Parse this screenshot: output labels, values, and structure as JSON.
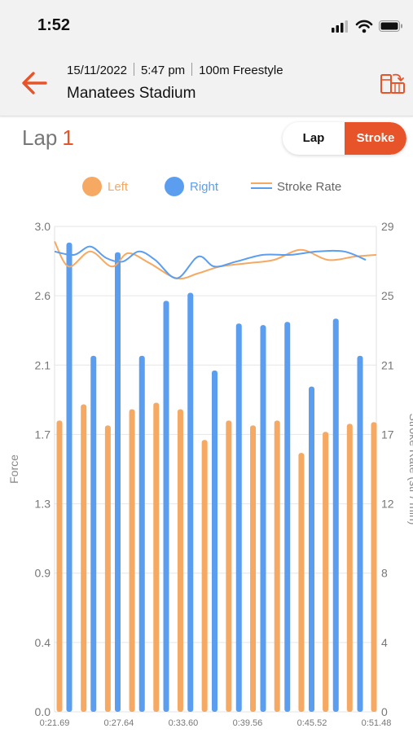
{
  "status_bar": {
    "time": "1:52"
  },
  "header": {
    "date": "15/11/2022",
    "time": "5:47 pm",
    "event": "100m Freestyle",
    "venue": "Manatees Stadium"
  },
  "lap": {
    "label": "Lap",
    "number": "1"
  },
  "toggle": {
    "lap_label": "Lap",
    "stroke_label": "Stroke",
    "selected": "Stroke"
  },
  "colors": {
    "accent": "#e8542a",
    "left": "#f5a962",
    "right": "#5b9ef0"
  },
  "chart_data": {
    "type": "bar",
    "legend": [
      "Left",
      "Right",
      "Stroke Rate"
    ],
    "legend_position": "top",
    "ylabel": "Force",
    "y2label": "Stroke Rate (str / min)",
    "yticks": [
      "0.0",
      "0.4",
      "0.9",
      "1.3",
      "1.7",
      "2.1",
      "2.6",
      "3.0"
    ],
    "y2ticks": [
      "0",
      "4",
      "8",
      "12",
      "17",
      "21",
      "25",
      "29"
    ],
    "xticks": [
      "0:21.69",
      "0:27.64",
      "0:33.60",
      "0:39.56",
      "0:45.52",
      "0:51.48"
    ],
    "ylim": [
      0,
      3.0
    ],
    "y2lim": [
      0,
      29
    ],
    "grid": true,
    "left_force": [
      1.8,
      1.9,
      1.77,
      1.87,
      1.91,
      1.87,
      1.68,
      1.8,
      1.77,
      1.8,
      1.6,
      1.73,
      1.78,
      1.79
    ],
    "right_force": [
      2.9,
      2.2,
      2.84,
      2.2,
      2.54,
      2.59,
      2.11,
      2.4,
      2.39,
      2.41,
      2.01,
      2.43,
      2.2
    ],
    "stroke_rate_left": {
      "x": [
        "0:21.69",
        "0:23.00",
        "0:25.00",
        "0:27.00",
        "0:28.50",
        "0:30.50",
        "0:33.00",
        "0:35.00",
        "0:37.00",
        "0:39.50",
        "0:42.00",
        "0:44.50",
        "0:47.00",
        "0:49.50",
        "0:51.48"
      ],
      "values": [
        28.1,
        26.6,
        27.5,
        26.6,
        27.4,
        26.8,
        25.9,
        26.2,
        26.6,
        26.8,
        27.0,
        27.6,
        27.0,
        27.2,
        27.3
      ]
    },
    "stroke_rate_right": {
      "x": [
        "0:21.69",
        "0:23.50",
        "0:25.00",
        "0:26.50",
        "0:28.00",
        "0:29.50",
        "0:31.00",
        "0:33.00",
        "0:35.00",
        "0:36.50",
        "0:38.50",
        "0:41.00",
        "0:43.50",
        "0:46.00",
        "0:48.50",
        "0:50.50"
      ],
      "values": [
        27.5,
        27.3,
        27.8,
        27.1,
        26.9,
        27.5,
        27.0,
        25.9,
        27.2,
        26.6,
        26.9,
        27.3,
        27.3,
        27.5,
        27.5,
        27.0
      ]
    }
  }
}
